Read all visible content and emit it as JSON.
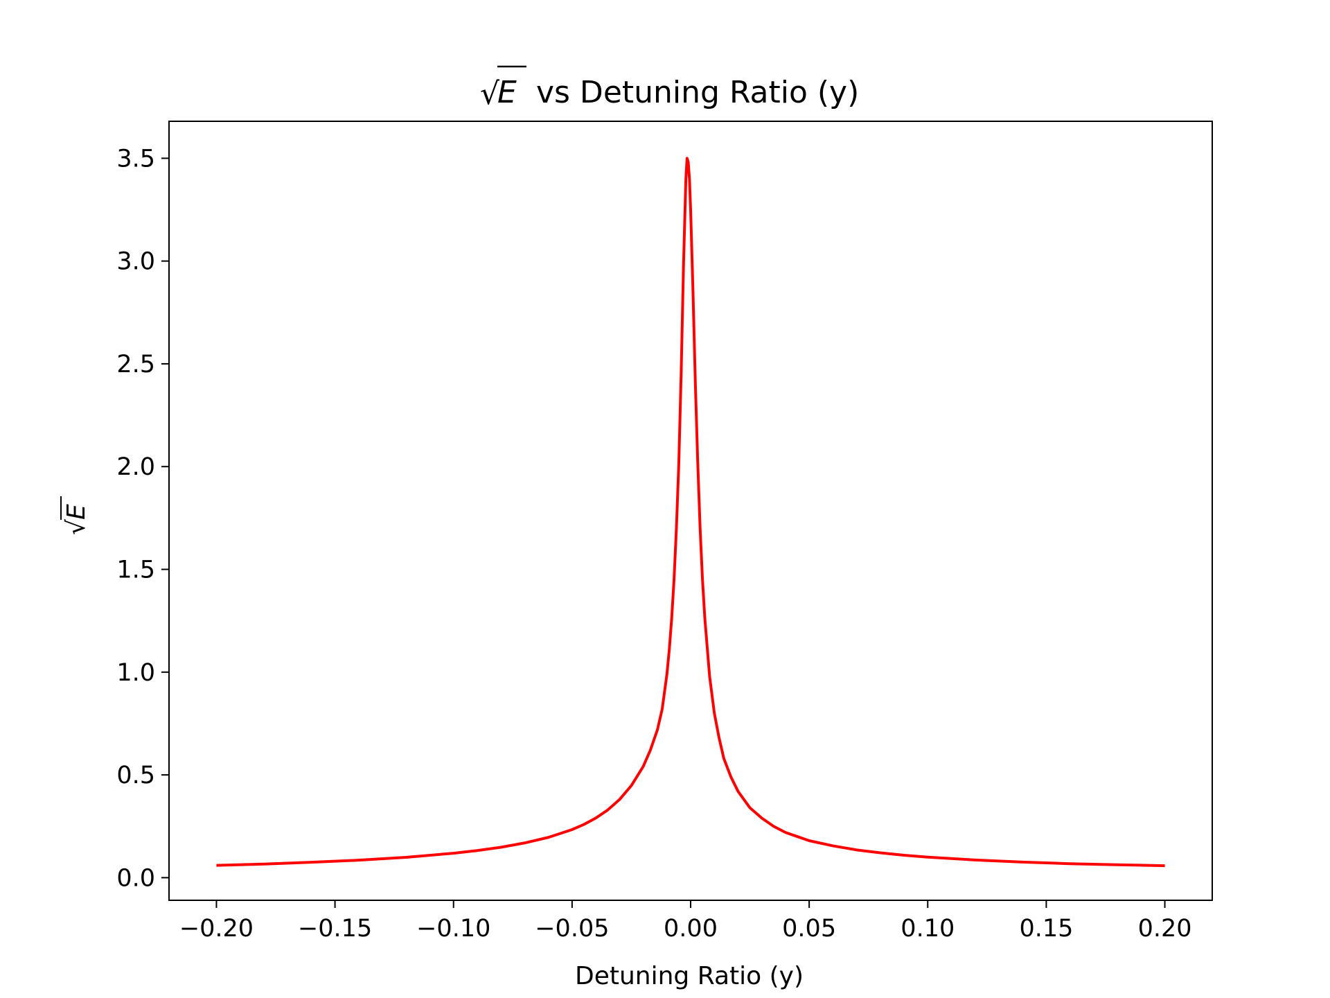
{
  "chart_data": {
    "type": "line",
    "title": {
      "radicand": "E",
      "rest": " vs Detuning Ratio (y)"
    },
    "xlabel": "Detuning Ratio (y)",
    "ylabel": {
      "radicand": "E"
    },
    "xlim": [
      -0.22,
      0.22
    ],
    "ylim": [
      -0.11,
      3.68
    ],
    "xticks": [
      -0.2,
      -0.15,
      -0.1,
      -0.05,
      0.0,
      0.05,
      0.1,
      0.15,
      0.2
    ],
    "xtick_labels": [
      "−0.20",
      "−0.15",
      "−0.10",
      "−0.05",
      "0.00",
      "0.05",
      "0.10",
      "0.15",
      "0.20"
    ],
    "yticks": [
      0.0,
      0.5,
      1.0,
      1.5,
      2.0,
      2.5,
      3.0,
      3.5
    ],
    "ytick_labels": [
      "0.0",
      "0.5",
      "1.0",
      "1.5",
      "2.0",
      "2.5",
      "3.0",
      "3.5"
    ],
    "grid": false,
    "series": [
      {
        "color": "#ff0000",
        "x": [
          -0.2,
          -0.18,
          -0.16,
          -0.14,
          -0.12,
          -0.1,
          -0.09,
          -0.08,
          -0.07,
          -0.06,
          -0.05,
          -0.045,
          -0.04,
          -0.035,
          -0.03,
          -0.025,
          -0.02,
          -0.017,
          -0.014,
          -0.012,
          -0.01,
          -0.009,
          -0.008,
          -0.007,
          -0.006,
          -0.005,
          -0.004,
          -0.003,
          -0.002,
          -0.0015,
          -0.001,
          -0.0005,
          0.0,
          0.001,
          0.002,
          0.003,
          0.004,
          0.005,
          0.006,
          0.008,
          0.01,
          0.012,
          0.014,
          0.017,
          0.02,
          0.025,
          0.03,
          0.035,
          0.04,
          0.045,
          0.05,
          0.06,
          0.07,
          0.08,
          0.09,
          0.1,
          0.12,
          0.14,
          0.16,
          0.18,
          0.2
        ],
        "y": [
          0.06,
          0.066,
          0.075,
          0.085,
          0.099,
          0.119,
          0.132,
          0.148,
          0.169,
          0.196,
          0.234,
          0.259,
          0.29,
          0.329,
          0.38,
          0.448,
          0.541,
          0.62,
          0.72,
          0.82,
          0.99,
          1.11,
          1.26,
          1.45,
          1.7,
          2.01,
          2.45,
          2.98,
          3.4,
          3.5,
          3.48,
          3.4,
          3.25,
          2.85,
          2.4,
          2.02,
          1.7,
          1.45,
          1.26,
          0.98,
          0.8,
          0.68,
          0.58,
          0.49,
          0.42,
          0.34,
          0.29,
          0.25,
          0.22,
          0.2,
          0.18,
          0.155,
          0.135,
          0.121,
          0.109,
          0.1,
          0.086,
          0.076,
          0.068,
          0.063,
          0.058
        ]
      }
    ]
  }
}
